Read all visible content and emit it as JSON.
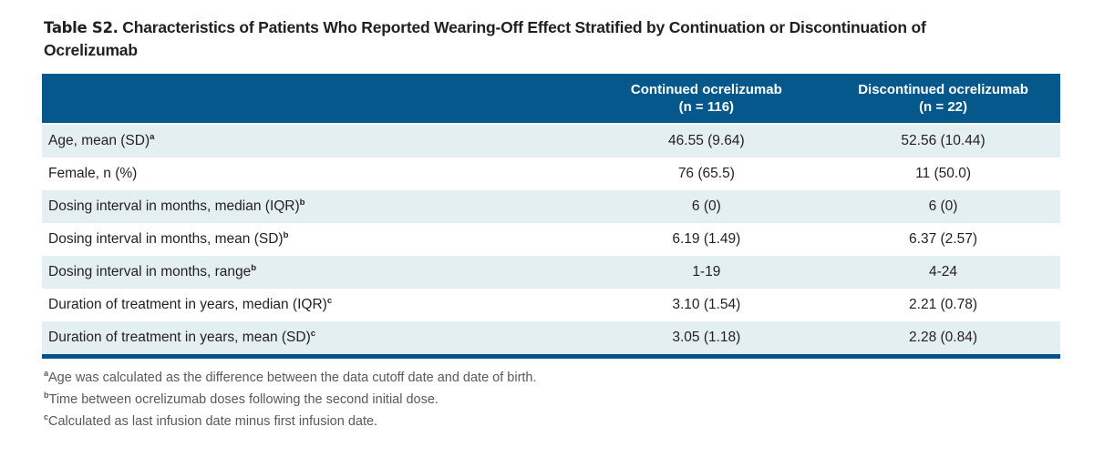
{
  "title": {
    "label": "Table S2.",
    "text": "Characteristics of Patients Who Reported Wearing-Off Effect Stratified by Continuation or Discontinuation of Ocrelizumab"
  },
  "table": {
    "columns": [
      {
        "name": "Continued ocrelizumab",
        "n": "(n = 116)"
      },
      {
        "name": "Discontinued ocrelizumab",
        "n": "(n = 22)"
      }
    ],
    "rows": [
      {
        "label": "Age, mean (SD)",
        "sup": "a",
        "continued": "46.55 (9.64)",
        "discontinued": "52.56 (10.44)"
      },
      {
        "label": "Female, n (%)",
        "sup": "",
        "continued": "76 (65.5)",
        "discontinued": "11 (50.0)"
      },
      {
        "label": "Dosing interval in months, median (IQR)",
        "sup": "b",
        "continued": "6 (0)",
        "discontinued": "6 (0)"
      },
      {
        "label": "Dosing interval in months, mean (SD)",
        "sup": "b",
        "continued": "6.19 (1.49)",
        "discontinued": "6.37 (2.57)"
      },
      {
        "label": "Dosing interval in months, range",
        "sup": "b",
        "continued": "1-19",
        "discontinued": "4-24"
      },
      {
        "label": "Duration of treatment in years, median (IQR)",
        "sup": "c",
        "continued": "3.10 (1.54)",
        "discontinued": "2.21 (0.78)"
      },
      {
        "label": "Duration of treatment in years, mean (SD)",
        "sup": "c",
        "continued": "3.05 (1.18)",
        "discontinued": "2.28 (0.84)"
      }
    ]
  },
  "footnotes": [
    {
      "sup": "a",
      "text": "Age was calculated as the difference between the data cutoff date and date of birth."
    },
    {
      "sup": "b",
      "text": "Time between ocrelizumab doses following the second initial dose."
    },
    {
      "sup": "c",
      "text": "Calculated as last infusion date minus first infusion date."
    }
  ],
  "colors": {
    "header_bg": "#04588C",
    "row_alt_bg": "#E4EFF2",
    "table_bottom_border": "#07508A",
    "footnote_text": "#58595B"
  }
}
